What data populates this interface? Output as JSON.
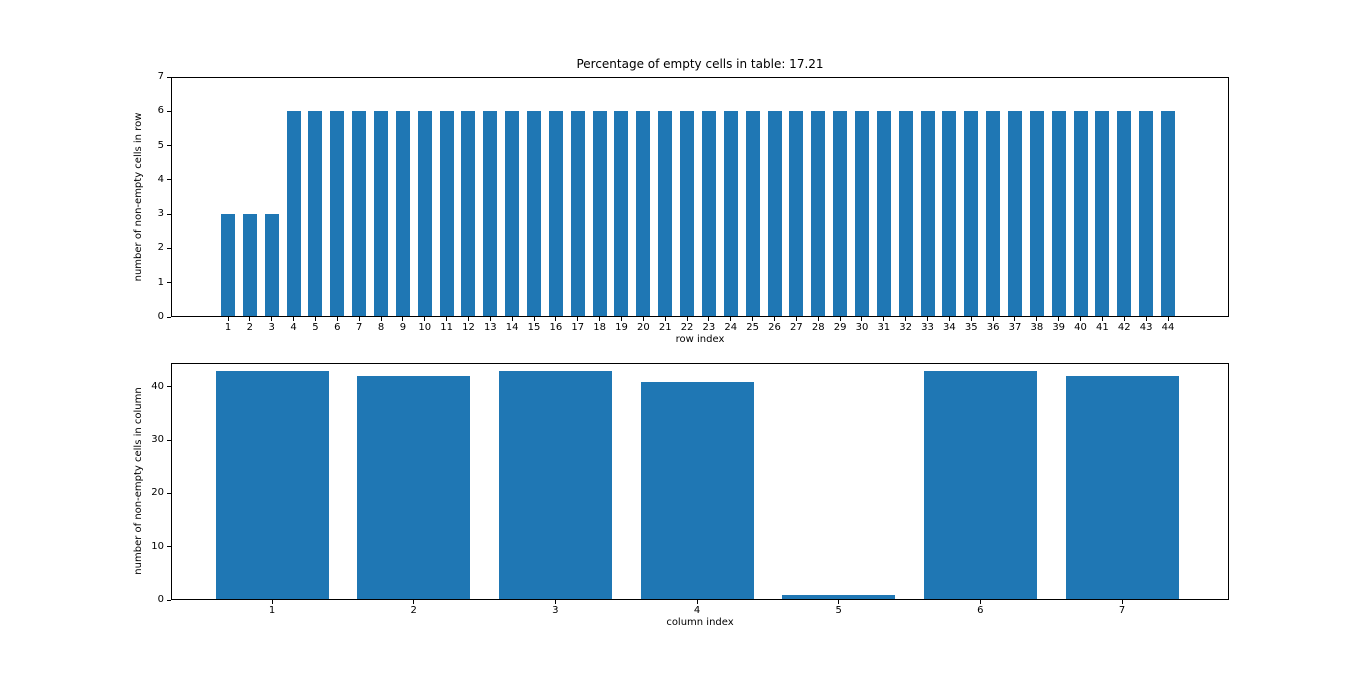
{
  "figure": {
    "background": "#ffffff",
    "bar_color": "#1f77b4",
    "text_color": "#000000"
  },
  "chart_data": [
    {
      "type": "bar",
      "title": "Percentage of empty cells in table: 17.21",
      "xlabel": "row index",
      "ylabel": "number of non-empty cells in row",
      "categories": [
        "1",
        "2",
        "3",
        "4",
        "5",
        "6",
        "7",
        "8",
        "9",
        "10",
        "11",
        "12",
        "13",
        "14",
        "15",
        "16",
        "17",
        "18",
        "19",
        "20",
        "21",
        "22",
        "23",
        "24",
        "25",
        "26",
        "27",
        "28",
        "29",
        "30",
        "31",
        "32",
        "33",
        "34",
        "35",
        "36",
        "37",
        "38",
        "39",
        "40",
        "41",
        "42",
        "43",
        "44"
      ],
      "values": [
        3,
        3,
        3,
        6,
        6,
        6,
        6,
        6,
        6,
        6,
        6,
        6,
        6,
        6,
        6,
        6,
        6,
        6,
        6,
        6,
        6,
        6,
        6,
        6,
        6,
        6,
        6,
        6,
        6,
        6,
        6,
        6,
        6,
        6,
        6,
        6,
        6,
        6,
        6,
        6,
        6,
        6,
        6,
        6
      ],
      "ylim": [
        0,
        7
      ],
      "yticks": [
        0,
        1,
        2,
        3,
        4,
        5,
        6,
        7
      ],
      "grid": false,
      "legend": "none",
      "bar_color": "#1f77b4"
    },
    {
      "type": "bar",
      "title": "",
      "xlabel": "column index",
      "ylabel": "number of non-empty cells in column",
      "categories": [
        "1",
        "2",
        "3",
        "4",
        "5",
        "6",
        "7"
      ],
      "values": [
        43,
        42,
        43,
        41,
        1,
        43,
        42
      ],
      "ylim": [
        0,
        44.5
      ],
      "yticks": [
        0,
        10,
        20,
        30,
        40
      ],
      "grid": false,
      "legend": "none",
      "bar_color": "#1f77b4"
    }
  ]
}
